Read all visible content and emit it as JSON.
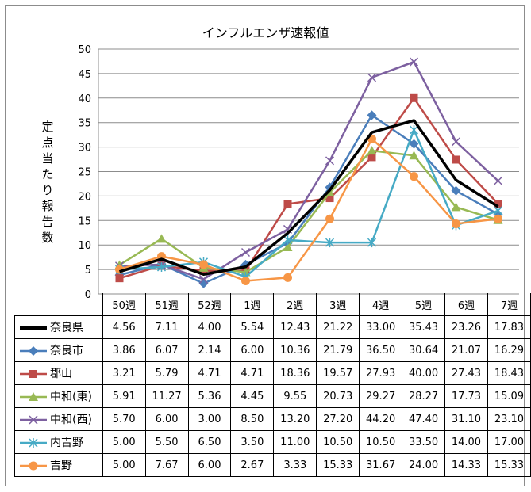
{
  "chart_data": {
    "type": "line",
    "title": "インフルエンザ速報値",
    "ylabel": "定点当たり報告数",
    "xlabel": "",
    "categories": [
      "50週",
      "51週",
      "52週",
      "1週",
      "2週",
      "3週",
      "4週",
      "5週",
      "6週",
      "7週"
    ],
    "ylim": [
      0,
      50
    ],
    "yticks": [
      0,
      5,
      10,
      15,
      20,
      25,
      30,
      35,
      40,
      45,
      50
    ],
    "grid": true,
    "legend": "data-table",
    "series": [
      {
        "name": "奈良県",
        "color": "#000000",
        "marker": "none",
        "values": [
          4.56,
          7.11,
          4.0,
          5.54,
          12.43,
          21.22,
          33.0,
          35.43,
          23.26,
          17.83
        ],
        "labels": [
          "4.56",
          "7.11",
          "4.00",
          "5.54",
          "12.43",
          "21.22",
          "33.00",
          "35.43",
          "23.26",
          "17.83"
        ]
      },
      {
        "name": "奈良市",
        "color": "#4a7ebb",
        "marker": "diamond",
        "values": [
          3.86,
          6.07,
          2.14,
          6.0,
          10.36,
          21.79,
          36.5,
          30.64,
          21.07,
          16.29
        ],
        "labels": [
          "3.86",
          "6.07",
          "2.14",
          "6.00",
          "10.36",
          "21.79",
          "36.50",
          "30.64",
          "21.07",
          "16.29"
        ]
      },
      {
        "name": "郡山",
        "color": "#be4b48",
        "marker": "square",
        "values": [
          3.21,
          5.79,
          4.71,
          4.71,
          18.36,
          19.57,
          27.93,
          40.0,
          27.43,
          18.43
        ],
        "labels": [
          "3.21",
          "5.79",
          "4.71",
          "4.71",
          "18.36",
          "19.57",
          "27.93",
          "40.00",
          "27.43",
          "18.43"
        ]
      },
      {
        "name": "中和(東)",
        "color": "#98b954",
        "marker": "triangle",
        "values": [
          5.91,
          11.27,
          5.36,
          4.45,
          9.55,
          20.73,
          29.27,
          28.27,
          17.73,
          15.09
        ],
        "labels": [
          "5.91",
          "11.27",
          "5.36",
          "4.45",
          "9.55",
          "20.73",
          "29.27",
          "28.27",
          "17.73",
          "15.09"
        ]
      },
      {
        "name": "中和(西)",
        "color": "#7d60a0",
        "marker": "x",
        "values": [
          5.7,
          6.0,
          3.0,
          8.5,
          13.2,
          27.2,
          44.2,
          47.4,
          31.1,
          23.1
        ],
        "labels": [
          "5.70",
          "6.00",
          "3.00",
          "8.50",
          "13.20",
          "27.20",
          "44.20",
          "47.40",
          "31.10",
          "23.10"
        ]
      },
      {
        "name": "内吉野",
        "color": "#46aac5",
        "marker": "star",
        "values": [
          5.0,
          5.5,
          6.5,
          3.5,
          11.0,
          10.5,
          10.5,
          33.5,
          14.0,
          17.0
        ],
        "labels": [
          "5.00",
          "5.50",
          "6.50",
          "3.50",
          "11.00",
          "10.50",
          "10.50",
          "33.50",
          "14.00",
          "17.00"
        ]
      },
      {
        "name": "吉野",
        "color": "#f79646",
        "marker": "circle",
        "values": [
          5.0,
          7.67,
          6.0,
          2.67,
          3.33,
          15.33,
          31.67,
          24.0,
          14.33,
          15.33
        ],
        "labels": [
          "5.00",
          "7.67",
          "6.00",
          "2.67",
          "3.33",
          "15.33",
          "31.67",
          "24.00",
          "14.33",
          "15.33"
        ]
      }
    ]
  }
}
